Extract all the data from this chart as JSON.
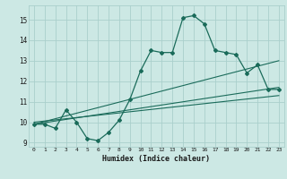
{
  "xlabel": "Humidex (Indice chaleur)",
  "ylabel": "",
  "xlim": [
    -0.5,
    23.5
  ],
  "ylim": [
    8.8,
    15.7
  ],
  "yticks": [
    9,
    10,
    11,
    12,
    13,
    14,
    15
  ],
  "xticks": [
    0,
    1,
    2,
    3,
    4,
    5,
    6,
    7,
    8,
    9,
    10,
    11,
    12,
    13,
    14,
    15,
    16,
    17,
    18,
    19,
    20,
    21,
    22,
    23
  ],
  "bg_color": "#cce8e4",
  "grid_color": "#aacfcc",
  "line_color": "#1a6b5a",
  "line1_x": [
    0,
    1,
    2,
    3,
    4,
    5,
    6,
    7,
    8,
    9,
    10,
    11,
    12,
    13,
    14,
    15,
    16,
    17,
    18,
    19,
    20,
    21,
    22,
    23
  ],
  "line1_y": [
    9.9,
    9.9,
    9.7,
    10.6,
    10.0,
    9.2,
    9.1,
    9.5,
    10.1,
    11.1,
    12.5,
    13.5,
    13.4,
    13.4,
    15.1,
    15.2,
    14.8,
    13.5,
    13.4,
    13.3,
    12.4,
    12.8,
    11.6,
    11.6
  ],
  "line2_x": [
    0,
    23
  ],
  "line2_y": [
    9.9,
    11.7
  ],
  "line3_x": [
    0,
    23
  ],
  "line3_y": [
    9.9,
    13.0
  ],
  "line4_x": [
    0,
    23
  ],
  "line4_y": [
    10.0,
    11.3
  ]
}
